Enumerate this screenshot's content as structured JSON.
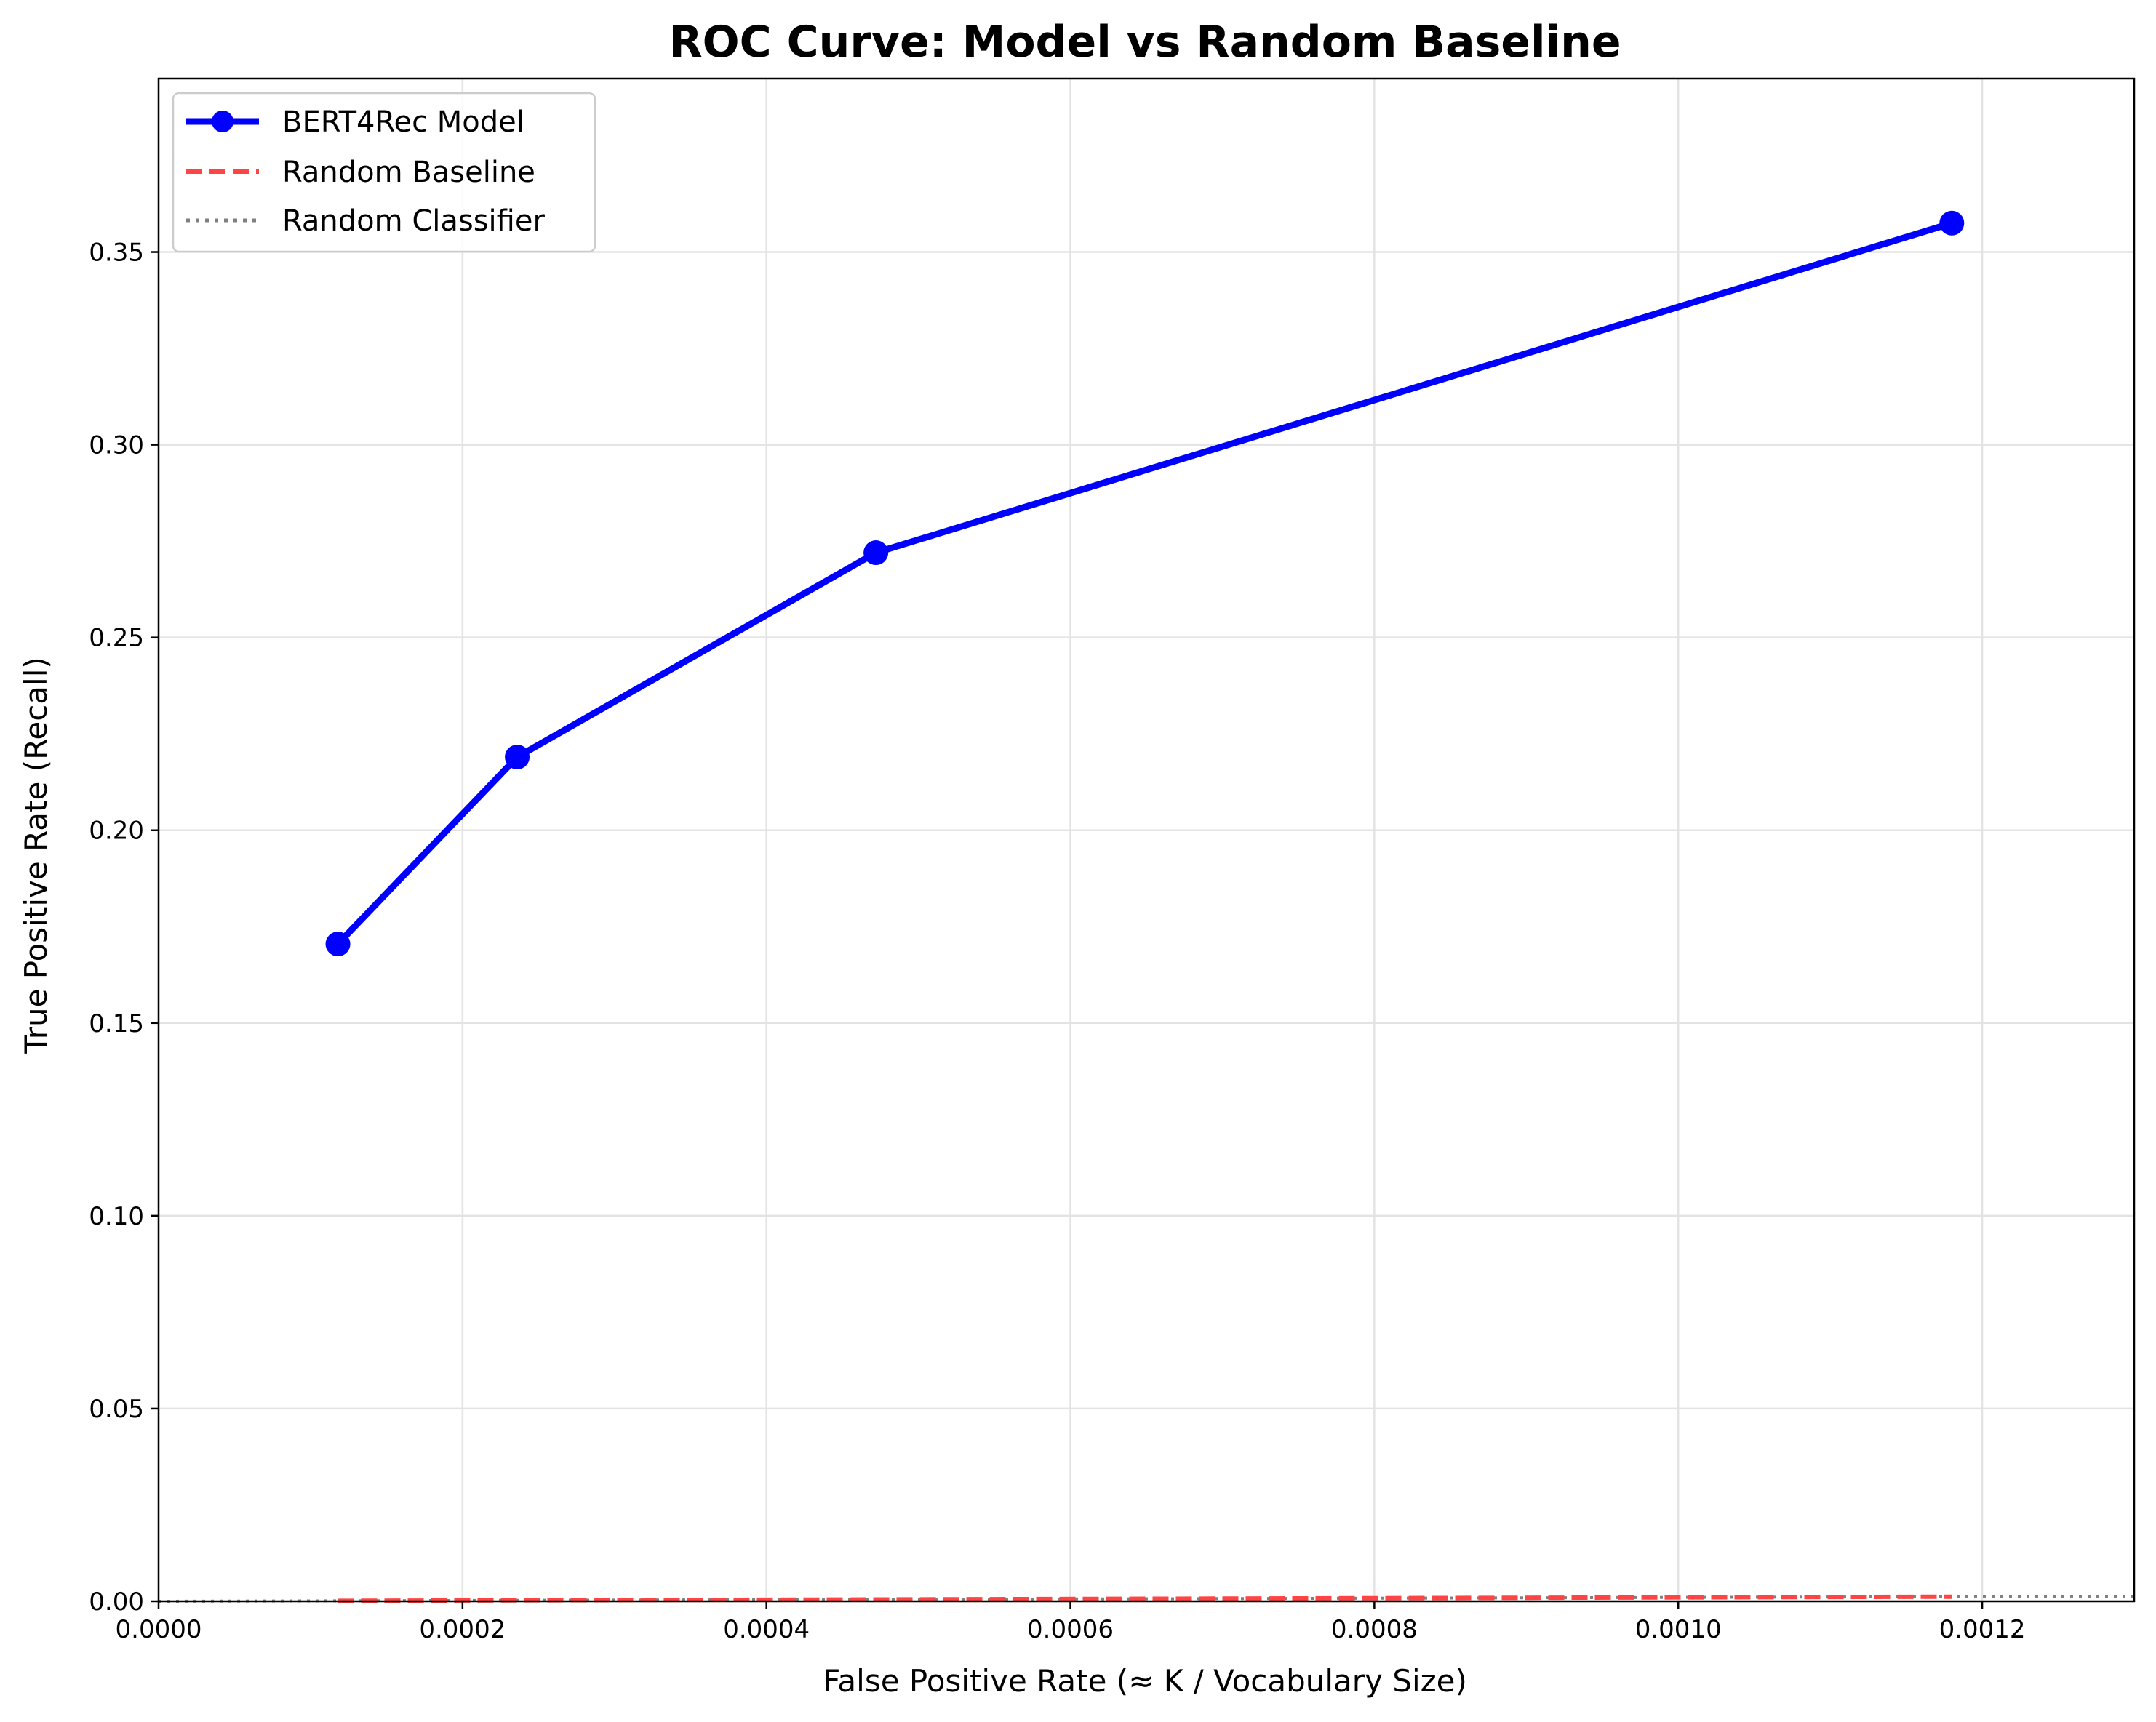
{
  "chart_data": {
    "type": "line",
    "title": "ROC Curve: Model vs Random Baseline",
    "xlabel": "False Positive Rate (≈ K / Vocabulary Size)",
    "ylabel": "True Positive Rate (Recall)",
    "xlim": [
      0,
      0.0013
    ],
    "ylim": [
      0,
      0.395
    ],
    "xticks": [
      "0.0000",
      "0.0002",
      "0.0004",
      "0.0006",
      "0.0008",
      "0.0010",
      "0.0012"
    ],
    "yticks": [
      "0.00",
      "0.05",
      "0.10",
      "0.15",
      "0.20",
      "0.25",
      "0.30",
      "0.35"
    ],
    "grid": true,
    "legend_position": "top-left",
    "series": [
      {
        "name": "BERT4Rec Model",
        "color": "#0000ff",
        "style": "solid-markers",
        "x": [
          0.000118,
          0.000236,
          0.000472,
          0.00118
        ],
        "y": [
          0.1705,
          0.219,
          0.272,
          0.3575
        ]
      },
      {
        "name": "Random Baseline",
        "color": "#ff4444",
        "style": "dashed",
        "x": [
          0.000118,
          0.000236,
          0.000472,
          0.00118
        ],
        "y": [
          0.000118,
          0.000236,
          0.000472,
          0.00118
        ]
      },
      {
        "name": "Random Classifier",
        "color": "#808080",
        "style": "dotted",
        "x": [
          0,
          0.0013
        ],
        "y": [
          0,
          0.0013
        ]
      }
    ]
  }
}
